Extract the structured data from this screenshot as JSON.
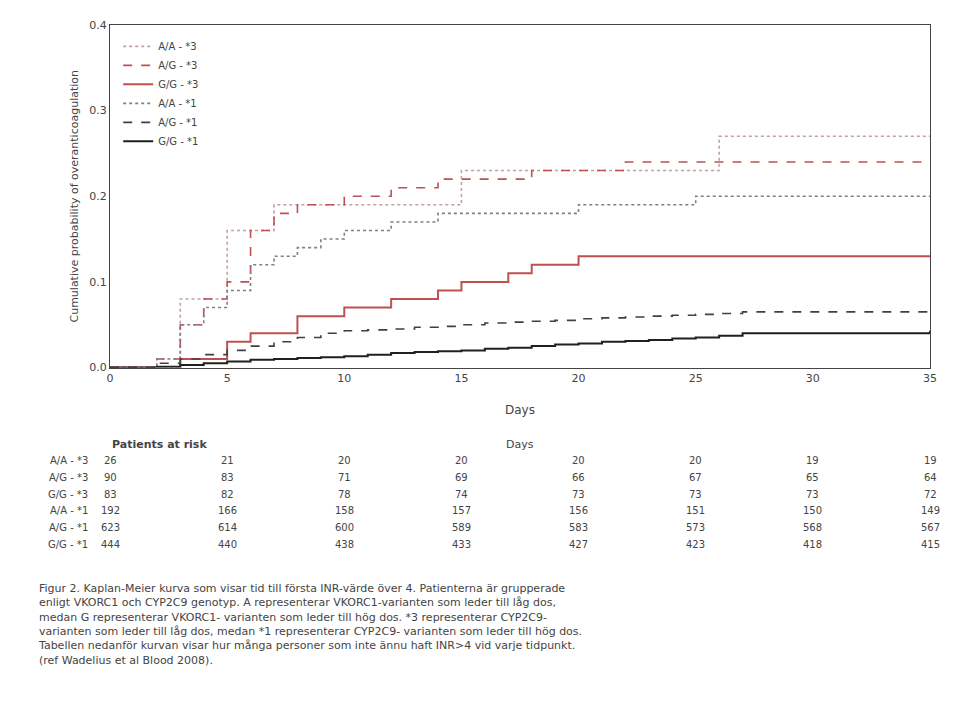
{
  "chart_data": {
    "type": "step",
    "xlabel": "Days",
    "ylabel": "Cumulative probability of overanticoagulation",
    "xlim": [
      0,
      35
    ],
    "ylim": [
      0,
      0.4
    ],
    "xticks": [
      0,
      5,
      10,
      15,
      20,
      25,
      30,
      35
    ],
    "yticks": [
      {
        "value": 0.0,
        "label": "0.0"
      },
      0.1,
      0.2,
      0.3,
      0.4
    ],
    "grid": false,
    "legend": "upper left",
    "series": [
      {
        "name": "A/A - *3",
        "color": "#c0a0a0",
        "line_style": "dotted",
        "x": [
          0,
          2,
          3,
          4,
          5,
          6,
          7,
          8,
          10,
          12,
          14,
          15,
          17,
          18,
          20,
          25,
          26,
          35
        ],
        "values": [
          0,
          0.0,
          0.08,
          0.08,
          0.16,
          0.16,
          0.19,
          0.19,
          0.19,
          0.19,
          0.19,
          0.23,
          0.23,
          0.23,
          0.23,
          0.23,
          0.27,
          0.27
        ]
      },
      {
        "name": "A/G - *3",
        "color": "#c05050",
        "line_style": "dashed",
        "x": [
          0,
          2,
          3,
          4,
          5,
          6,
          7,
          8,
          9,
          10,
          11,
          12,
          13,
          14,
          15,
          16,
          17,
          18,
          19,
          20,
          21,
          22,
          35
        ],
        "values": [
          0,
          0.01,
          0.05,
          0.08,
          0.1,
          0.16,
          0.18,
          0.19,
          0.19,
          0.2,
          0.2,
          0.21,
          0.21,
          0.22,
          0.22,
          0.22,
          0.22,
          0.23,
          0.23,
          0.23,
          0.23,
          0.24,
          0.24
        ]
      },
      {
        "name": "G/G - *3",
        "color": "#c05050",
        "line_style": "solid",
        "x": [
          0,
          3,
          4,
          5,
          6,
          7,
          8,
          9,
          10,
          11,
          12,
          13,
          14,
          15,
          16,
          17,
          18,
          19,
          20,
          21,
          35
        ],
        "values": [
          0,
          0.01,
          0.01,
          0.03,
          0.04,
          0.04,
          0.06,
          0.06,
          0.07,
          0.07,
          0.08,
          0.08,
          0.09,
          0.1,
          0.1,
          0.11,
          0.12,
          0.12,
          0.13,
          0.13,
          0.13
        ]
      },
      {
        "name": "A/A - *1",
        "color": "#808080",
        "line_style": "dotted",
        "x": [
          0,
          2,
          3,
          4,
          5,
          6,
          7,
          8,
          9,
          10,
          11,
          12,
          13,
          14,
          15,
          16,
          17,
          18,
          19,
          20,
          21,
          22,
          23,
          24,
          25,
          26,
          27,
          35
        ],
        "values": [
          0,
          0.01,
          0.05,
          0.07,
          0.09,
          0.12,
          0.13,
          0.14,
          0.15,
          0.16,
          0.16,
          0.17,
          0.17,
          0.18,
          0.18,
          0.18,
          0.18,
          0.18,
          0.18,
          0.19,
          0.19,
          0.19,
          0.19,
          0.19,
          0.2,
          0.2,
          0.2,
          0.2
        ]
      },
      {
        "name": "A/G - *1",
        "color": "#404040",
        "line_style": "dashed",
        "x": [
          0,
          2,
          3,
          4,
          5,
          6,
          7,
          8,
          9,
          10,
          11,
          12,
          13,
          14,
          15,
          16,
          17,
          18,
          19,
          20,
          21,
          22,
          23,
          24,
          25,
          26,
          27,
          35
        ],
        "values": [
          0,
          0.005,
          0.01,
          0.015,
          0.02,
          0.025,
          0.03,
          0.035,
          0.04,
          0.043,
          0.044,
          0.045,
          0.047,
          0.048,
          0.05,
          0.052,
          0.053,
          0.054,
          0.055,
          0.057,
          0.058,
          0.059,
          0.06,
          0.061,
          0.062,
          0.063,
          0.065,
          0.065
        ]
      },
      {
        "name": "G/G - *1",
        "color": "#202020",
        "line_style": "solid",
        "x": [
          0,
          2,
          3,
          4,
          5,
          6,
          7,
          8,
          9,
          10,
          11,
          12,
          13,
          14,
          15,
          16,
          17,
          18,
          19,
          20,
          21,
          22,
          23,
          24,
          25,
          26,
          27,
          35
        ],
        "values": [
          0,
          0.001,
          0.003,
          0.005,
          0.007,
          0.009,
          0.01,
          0.011,
          0.012,
          0.013,
          0.015,
          0.017,
          0.018,
          0.019,
          0.02,
          0.022,
          0.023,
          0.025,
          0.027,
          0.028,
          0.03,
          0.031,
          0.032,
          0.034,
          0.035,
          0.037,
          0.04,
          0.043
        ]
      }
    ],
    "table": {
      "header": "Patients at risk",
      "days_label": "Days",
      "day_points": [
        0,
        5,
        10,
        15,
        20,
        25,
        30,
        35
      ],
      "rows": [
        {
          "label": "A/A - *3",
          "values": [
            26,
            21,
            20,
            20,
            20,
            20,
            19,
            19
          ]
        },
        {
          "label": "A/G - *3",
          "values": [
            90,
            83,
            71,
            69,
            66,
            67,
            65,
            64
          ]
        },
        {
          "label": "G/G - *3",
          "values": [
            83,
            82,
            78,
            74,
            73,
            73,
            73,
            72
          ]
        },
        {
          "label": "A/A - *1",
          "values": [
            192,
            166,
            158,
            157,
            156,
            151,
            150,
            149
          ]
        },
        {
          "label": "A/G - *1",
          "values": [
            623,
            614,
            600,
            589,
            583,
            573,
            568,
            567
          ]
        },
        {
          "label": "G/G - *1",
          "values": [
            444,
            440,
            438,
            433,
            427,
            423,
            418,
            415
          ]
        }
      ]
    },
    "caption_lines": [
      "Figur 2. Kaplan-Meier kurva som visar tid till första INR-värde över 4. Patienterna är grupperade",
      "enligt VKORC1 och CYP2C9 genotyp. A representerar VKORC1-varianten som leder till låg dos,",
      "medan G representerar VKORC1- varianten som leder till hög dos. *3 representerar CYP2C9-",
      "varianten som leder till låg dos, medan *1 representerar CYP2C9- varianten som leder till hög dos.",
      "Tabellen nedanför kurvan visar hur många personer som inte ännu haft INR>4 vid varje tidpunkt.",
      "(ref Wadelius et al Blood 2008)."
    ]
  }
}
